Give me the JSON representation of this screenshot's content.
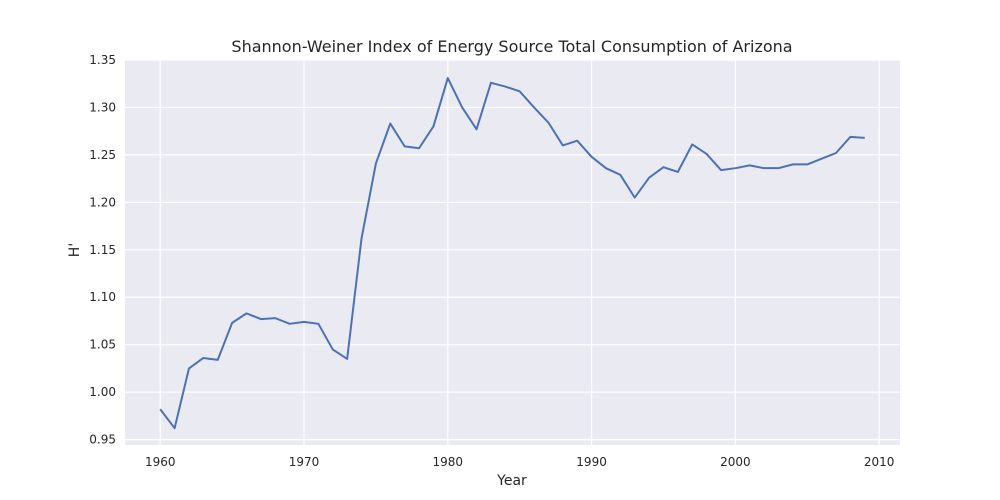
{
  "chart_data": {
    "type": "line",
    "title": "Shannon-Weiner Index of Energy Source Total Consumption of Arizona",
    "xlabel": "Year",
    "ylabel": "H'",
    "xlim": [
      1957.55,
      2011.45
    ],
    "ylim": [
      0.9443,
      1.35
    ],
    "xticks": [
      1960,
      1970,
      1980,
      1990,
      2000,
      2010
    ],
    "xtick_labels": [
      "1960",
      "1970",
      "1980",
      "1990",
      "2000",
      "2010"
    ],
    "yticks": [
      0.95,
      1.0,
      1.05,
      1.1,
      1.15,
      1.2,
      1.25,
      1.3,
      1.35
    ],
    "ytick_labels": [
      "0.95",
      "1.00",
      "1.05",
      "1.10",
      "1.15",
      "1.20",
      "1.25",
      "1.30",
      "1.35"
    ],
    "grid": true,
    "legend": false,
    "colors": {
      "background": "#EAEAF2",
      "grid": "#FFFFFF",
      "line": "#4C72B0",
      "text": "#262626"
    },
    "series": [
      {
        "x": [
          1960,
          1961,
          1962,
          1963,
          1964,
          1965,
          1966,
          1967,
          1968,
          1969,
          1970,
          1971,
          1972,
          1973,
          1974,
          1975,
          1976,
          1977,
          1978,
          1979,
          1980,
          1981,
          1982,
          1983,
          1984,
          1985,
          1986,
          1987,
          1988,
          1989,
          1990,
          1991,
          1992,
          1993,
          1994,
          1995,
          1996,
          1997,
          1998,
          1999,
          2000,
          2001,
          2002,
          2003,
          2004,
          2005,
          2006,
          2007,
          2008,
          2009
        ],
        "y": [
          0.982,
          0.962,
          1.025,
          1.036,
          1.034,
          1.073,
          1.083,
          1.077,
          1.078,
          1.072,
          1.074,
          1.072,
          1.045,
          1.035,
          1.162,
          1.241,
          1.283,
          1.259,
          1.257,
          1.28,
          1.331,
          1.3,
          1.277,
          1.326,
          1.322,
          1.317,
          1.3,
          1.284,
          1.26,
          1.265,
          1.248,
          1.236,
          1.229,
          1.205,
          1.226,
          1.237,
          1.232,
          1.261,
          1.251,
          1.234,
          1.236,
          1.239,
          1.236,
          1.236,
          1.24,
          1.24,
          1.246,
          1.252,
          1.269,
          1.268
        ]
      }
    ]
  }
}
